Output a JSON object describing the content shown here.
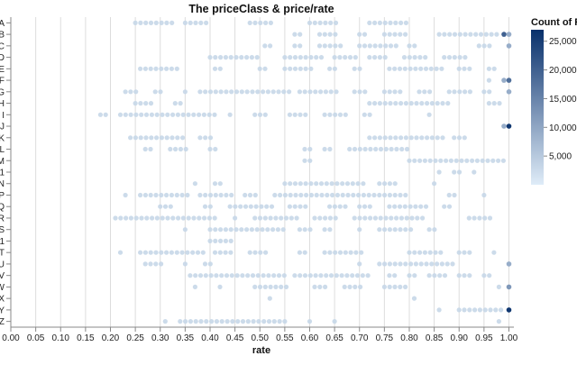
{
  "chart_data": {
    "type": "scatter",
    "title": "The priceClass & price/rate",
    "xlabel": "rate",
    "ylabel": "",
    "x_ticks": [
      "0.00",
      "0.05",
      "0.10",
      "0.15",
      "0.20",
      "0.25",
      "0.30",
      "0.35",
      "0.40",
      "0.45",
      "0.50",
      "0.55",
      "0.60",
      "0.65",
      "0.70",
      "0.75",
      "0.80",
      "0.85",
      "0.90",
      "0.95",
      "1.00"
    ],
    "xlim": [
      0,
      1.01
    ],
    "categories": [
      "A",
      "B",
      "C",
      "D",
      "E",
      "F",
      "G",
      "H",
      "I",
      "J",
      "K",
      "L",
      "M",
      "1",
      "N",
      "P",
      "Q",
      "R",
      "S",
      "1",
      "T",
      "U",
      "V",
      "W",
      "X",
      "Y",
      "Z"
    ],
    "grid": true,
    "legend": {
      "title": "Count of Re",
      "position": "right",
      "ticks": [
        25000,
        20000,
        15000,
        10000,
        5000
      ],
      "tick_labels": [
        "25,000",
        "20,000",
        "15,000",
        "10,000",
        "5,000"
      ],
      "range": [
        0,
        27000
      ],
      "colors": [
        "#dfecf8",
        "#08306b"
      ]
    },
    "series": [
      {
        "name": "A",
        "ranges": [
          [
            0.25,
            0.33
          ],
          [
            0.35,
            0.4
          ],
          [
            0.48,
            0.53
          ],
          [
            0.6,
            0.66
          ],
          [
            0.72,
            0.8
          ]
        ],
        "highlights": []
      },
      {
        "name": "B",
        "ranges": [
          [
            0.57,
            0.59
          ],
          [
            0.62,
            0.66
          ],
          [
            0.7,
            0.72
          ],
          [
            0.75,
            0.8
          ],
          [
            0.86,
            0.98
          ]
        ],
        "highlights": [
          {
            "x": 0.99,
            "count": 20000
          },
          {
            "x": 1.0,
            "count": 9000
          }
        ]
      },
      {
        "name": "C",
        "ranges": [
          [
            0.51,
            0.53
          ],
          [
            0.57,
            0.59
          ],
          [
            0.62,
            0.67
          ],
          [
            0.7,
            0.78
          ],
          [
            0.8,
            0.82
          ],
          [
            0.94,
            0.97
          ]
        ],
        "highlights": [
          {
            "x": 1.0,
            "count": 9000
          }
        ]
      },
      {
        "name": "D",
        "ranges": [
          [
            0.4,
            0.5
          ],
          [
            0.55,
            0.63
          ],
          [
            0.65,
            0.7
          ],
          [
            0.72,
            0.76
          ],
          [
            0.79,
            0.84
          ],
          [
            0.87,
            0.92
          ]
        ],
        "highlights": []
      },
      {
        "name": "E",
        "ranges": [
          [
            0.26,
            0.34
          ],
          [
            0.41,
            0.43
          ],
          [
            0.5,
            0.52
          ],
          [
            0.55,
            0.61
          ],
          [
            0.64,
            0.66
          ],
          [
            0.69,
            0.71
          ],
          [
            0.76,
            0.87
          ],
          [
            0.9,
            0.93
          ],
          [
            0.96,
            0.98
          ]
        ],
        "highlights": []
      },
      {
        "name": "F",
        "ranges": [
          [
            0.96,
            0.97
          ]
        ],
        "highlights": [
          {
            "x": 0.99,
            "count": 9000
          },
          {
            "x": 1.0,
            "count": 18000
          }
        ]
      },
      {
        "name": "G",
        "ranges": [
          [
            0.23,
            0.26
          ],
          [
            0.29,
            0.31
          ],
          [
            0.35,
            0.36
          ],
          [
            0.38,
            0.56
          ],
          [
            0.58,
            0.66
          ],
          [
            0.69,
            0.72
          ],
          [
            0.75,
            0.79
          ],
          [
            0.82,
            0.85
          ],
          [
            0.88,
            0.93
          ],
          [
            0.95,
            0.97
          ]
        ],
        "highlights": [
          {
            "x": 1.0,
            "count": 9000
          }
        ]
      },
      {
        "name": "H",
        "ranges": [
          [
            0.25,
            0.29
          ],
          [
            0.33,
            0.35
          ],
          [
            0.72,
            0.88
          ],
          [
            0.96,
            0.99
          ]
        ],
        "highlights": []
      },
      {
        "name": "I",
        "ranges": [
          [
            0.18,
            0.2
          ],
          [
            0.22,
            0.41
          ],
          [
            0.44,
            0.45
          ],
          [
            0.49,
            0.52
          ],
          [
            0.56,
            0.6
          ],
          [
            0.63,
            0.68
          ],
          [
            0.71,
            0.73
          ],
          [
            0.84,
            0.85
          ]
        ],
        "highlights": []
      },
      {
        "name": "J",
        "ranges": [],
        "highlights": [
          {
            "x": 0.99,
            "count": 9000
          },
          {
            "x": 1.0,
            "count": 26000
          }
        ]
      },
      {
        "name": "K",
        "ranges": [
          [
            0.24,
            0.35
          ],
          [
            0.38,
            0.41
          ],
          [
            0.72,
            0.87
          ],
          [
            0.89,
            0.92
          ]
        ],
        "highlights": []
      },
      {
        "name": "L",
        "ranges": [
          [
            0.27,
            0.29
          ],
          [
            0.32,
            0.36
          ],
          [
            0.4,
            0.42
          ],
          [
            0.59,
            0.61
          ],
          [
            0.63,
            0.65
          ],
          [
            0.68,
            0.8
          ]
        ],
        "highlights": []
      },
      {
        "name": "M",
        "ranges": [
          [
            0.59,
            0.61
          ],
          [
            0.8,
            0.99
          ]
        ],
        "highlights": []
      },
      {
        "name": "1",
        "ranges": [
          [
            0.86,
            0.87
          ],
          [
            0.89,
            0.91
          ],
          [
            0.93,
            0.94
          ]
        ],
        "highlights": []
      },
      {
        "name": "N",
        "ranges": [
          [
            0.37,
            0.38
          ],
          [
            0.41,
            0.43
          ],
          [
            0.55,
            0.71
          ],
          [
            0.74,
            0.78
          ],
          [
            0.85,
            0.86
          ]
        ],
        "highlights": []
      },
      {
        "name": "P",
        "ranges": [
          [
            0.23,
            0.24
          ],
          [
            0.26,
            0.36
          ],
          [
            0.38,
            0.45
          ],
          [
            0.47,
            0.5
          ],
          [
            0.53,
            0.8
          ],
          [
            0.88,
            0.9
          ],
          [
            0.95,
            0.96
          ]
        ],
        "highlights": []
      },
      {
        "name": "Q",
        "ranges": [
          [
            0.3,
            0.33
          ],
          [
            0.39,
            0.41
          ],
          [
            0.44,
            0.53
          ],
          [
            0.56,
            0.6
          ],
          [
            0.64,
            0.68
          ],
          [
            0.7,
            0.73
          ],
          [
            0.76,
            0.84
          ],
          [
            0.87,
            0.89
          ]
        ],
        "highlights": []
      },
      {
        "name": "R",
        "ranges": [
          [
            0.21,
            0.41
          ],
          [
            0.45,
            0.46
          ],
          [
            0.49,
            0.58
          ],
          [
            0.61,
            0.66
          ],
          [
            0.69,
            0.83
          ],
          [
            0.92,
            0.97
          ]
        ],
        "highlights": []
      },
      {
        "name": "S",
        "ranges": [
          [
            0.35,
            0.36
          ],
          [
            0.4,
            0.55
          ],
          [
            0.58,
            0.61
          ],
          [
            0.63,
            0.65
          ],
          [
            0.7,
            0.71
          ],
          [
            0.74,
            0.81
          ],
          [
            0.84,
            0.86
          ]
        ],
        "highlights": []
      },
      {
        "name": "1",
        "ranges": [
          [
            0.4,
            0.45
          ]
        ],
        "highlights": []
      },
      {
        "name": "T",
        "ranges": [
          [
            0.22,
            0.23
          ],
          [
            0.26,
            0.39
          ],
          [
            0.41,
            0.45
          ],
          [
            0.48,
            0.52
          ],
          [
            0.58,
            0.6
          ],
          [
            0.63,
            0.71
          ],
          [
            0.8,
            0.87
          ],
          [
            0.9,
            0.93
          ],
          [
            0.97,
            0.98
          ]
        ],
        "highlights": []
      },
      {
        "name": "U",
        "ranges": [
          [
            0.27,
            0.31
          ],
          [
            0.35,
            0.36
          ],
          [
            0.39,
            0.41
          ],
          [
            0.7,
            0.71
          ],
          [
            0.74,
            0.89
          ]
        ],
        "highlights": [
          {
            "x": 1.0,
            "count": 9000
          }
        ]
      },
      {
        "name": "V",
        "ranges": [
          [
            0.36,
            0.55
          ],
          [
            0.57,
            0.72
          ],
          [
            0.76,
            0.78
          ],
          [
            0.8,
            0.82
          ],
          [
            0.84,
            0.88
          ],
          [
            0.9,
            0.93
          ],
          [
            0.95,
            0.97
          ]
        ],
        "highlights": []
      },
      {
        "name": "W",
        "ranges": [
          [
            0.37,
            0.38
          ],
          [
            0.42,
            0.43
          ],
          [
            0.49,
            0.56
          ],
          [
            0.61,
            0.64
          ],
          [
            0.67,
            0.71
          ],
          [
            0.75,
            0.8
          ],
          [
            0.98,
            0.99
          ]
        ],
        "highlights": [
          {
            "x": 1.0,
            "count": 12000
          }
        ]
      },
      {
        "name": "X",
        "ranges": [
          [
            0.52,
            0.53
          ],
          [
            0.81,
            0.82
          ]
        ],
        "highlights": []
      },
      {
        "name": "Y",
        "ranges": [
          [
            0.86,
            0.87
          ],
          [
            0.9,
            0.99
          ]
        ],
        "highlights": [
          {
            "x": 1.0,
            "count": 26000
          }
        ]
      },
      {
        "name": "Z",
        "ranges": [
          [
            0.31,
            0.32
          ],
          [
            0.34,
            0.55
          ],
          [
            0.6,
            0.61
          ],
          [
            0.65,
            0.66
          ],
          [
            0.98,
            0.99
          ]
        ],
        "highlights": []
      }
    ]
  }
}
